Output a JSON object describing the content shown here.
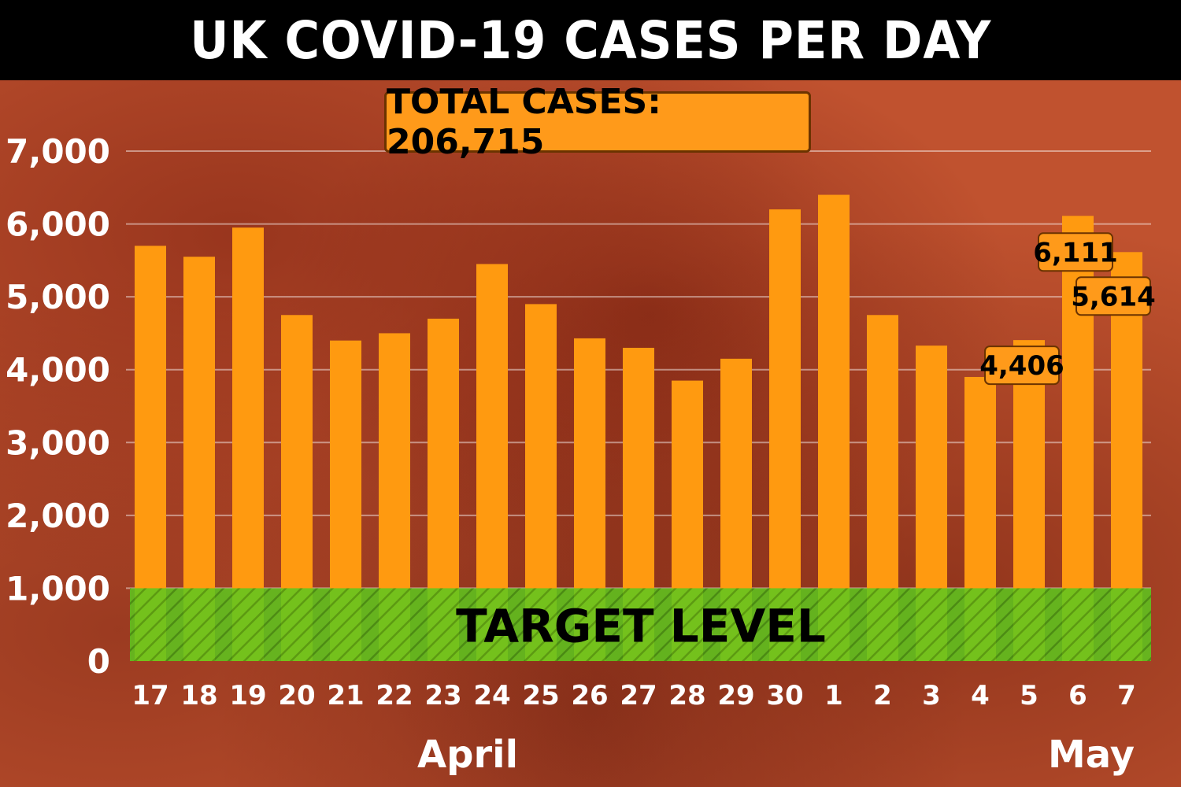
{
  "header": {
    "title": "UK COVID-19 CASES PER DAY",
    "total_label": "TOTAL CASES: 206,715"
  },
  "colors": {
    "bar": "#ff9a10",
    "target_band": "#5cc81e",
    "title_background": "#000000",
    "background": "#c0522f"
  },
  "chart_data": {
    "type": "bar",
    "title": "UK COVID-19 CASES PER DAY",
    "annotation": "TOTAL CASES: 206,715",
    "categories": [
      "17",
      "18",
      "19",
      "20",
      "21",
      "22",
      "23",
      "24",
      "25",
      "26",
      "27",
      "28",
      "29",
      "30",
      "1",
      "2",
      "3",
      "4",
      "5",
      "6",
      "7"
    ],
    "values": [
      5700,
      5550,
      5950,
      4750,
      4400,
      4500,
      4700,
      5450,
      4900,
      4430,
      4300,
      3850,
      4150,
      6200,
      6400,
      4750,
      4330,
      3900,
      4406,
      6111,
      5614
    ],
    "month_labels": [
      {
        "label": "April",
        "categories": [
          "17",
          "30"
        ]
      },
      {
        "label": "May",
        "categories": [
          "1",
          "7"
        ]
      }
    ],
    "data_labels": [
      {
        "category": "5",
        "text": "4,406"
      },
      {
        "category": "6",
        "text": "6,111"
      },
      {
        "category": "7",
        "text": "5,614"
      }
    ],
    "target": {
      "from": 0,
      "to": 1000,
      "label": "TARGET LEVEL"
    },
    "yticks": [
      "0",
      "1,000",
      "2,000",
      "3,000",
      "4,000",
      "5,000",
      "6,000",
      "7,000"
    ],
    "ylim": [
      0,
      7000
    ],
    "grid": true,
    "xlabel": "",
    "ylabel": ""
  }
}
